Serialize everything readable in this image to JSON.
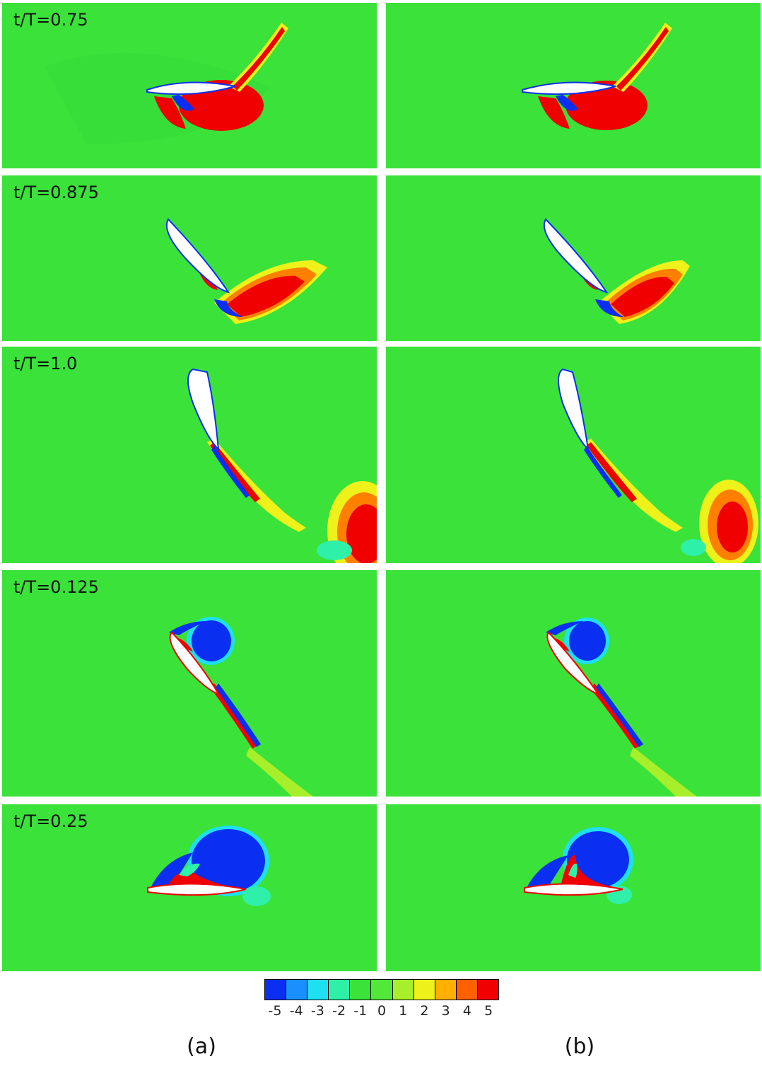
{
  "rows": [
    {
      "label": "t/T=0.75"
    },
    {
      "label": "t/T=0.875"
    },
    {
      "label": "t/T=1.0"
    },
    {
      "label": "t/T=0.125"
    },
    {
      "label": "t/T=0.25"
    }
  ],
  "colorbar": {
    "ticks": [
      "-5",
      "-4",
      "-3",
      "-2",
      "-1",
      "0",
      "1",
      "2",
      "3",
      "4",
      "5"
    ],
    "colors": [
      "#0a2ff0",
      "#1a8fff",
      "#1ee0f0",
      "#2ff0a8",
      "#3ae23a",
      "#52e83a",
      "#a6ef2a",
      "#eef21a",
      "#ffb000",
      "#ff6000",
      "#f00000"
    ]
  },
  "subfigures": {
    "a": "(a)",
    "b": "(b)"
  }
}
